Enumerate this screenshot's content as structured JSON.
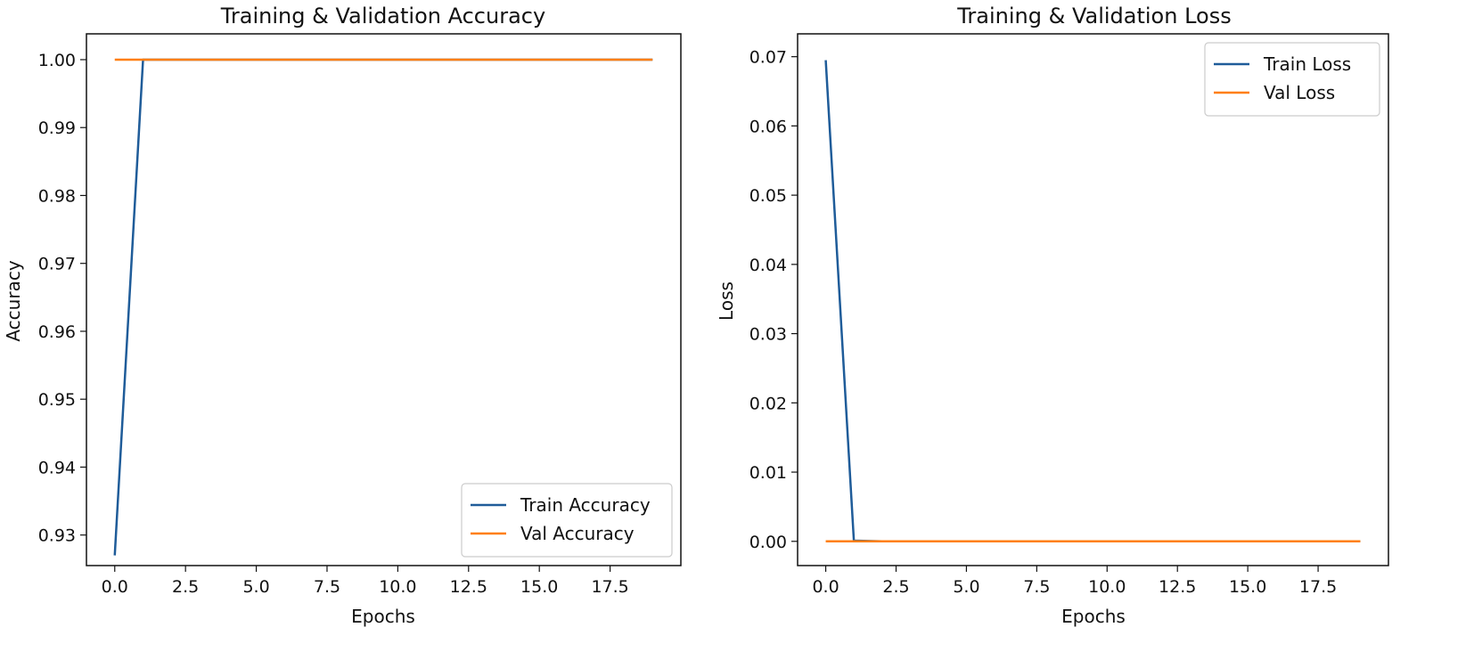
{
  "chart_data": [
    {
      "type": "line",
      "title": "Training & Validation Accuracy",
      "xlabel": "Epochs",
      "ylabel": "Accuracy",
      "xlim": [
        -1.0,
        20.0
      ],
      "ylim": [
        0.9255,
        1.0038
      ],
      "xticks": [
        0.0,
        2.5,
        5.0,
        7.5,
        10.0,
        12.5,
        15.0,
        17.5
      ],
      "xtick_labels": [
        "0.0",
        "2.5",
        "5.0",
        "7.5",
        "10.0",
        "12.5",
        "15.0",
        "17.5"
      ],
      "yticks": [
        0.93,
        0.94,
        0.95,
        0.96,
        0.97,
        0.98,
        0.99,
        1.0
      ],
      "ytick_labels": [
        "0.93",
        "0.94",
        "0.95",
        "0.96",
        "0.97",
        "0.98",
        "0.99",
        "1.00"
      ],
      "x": [
        0,
        1,
        2,
        3,
        4,
        5,
        6,
        7,
        8,
        9,
        10,
        11,
        12,
        13,
        14,
        15,
        16,
        17,
        18,
        19
      ],
      "series": [
        {
          "name": "Train Accuracy",
          "color": "#1f5c99",
          "values": [
            0.927,
            1.0,
            1.0,
            1.0,
            1.0,
            1.0,
            1.0,
            1.0,
            1.0,
            1.0,
            1.0,
            1.0,
            1.0,
            1.0,
            1.0,
            1.0,
            1.0,
            1.0,
            1.0,
            1.0
          ]
        },
        {
          "name": "Val Accuracy",
          "color": "#ff7f0e",
          "values": [
            1.0,
            1.0,
            1.0,
            1.0,
            1.0,
            1.0,
            1.0,
            1.0,
            1.0,
            1.0,
            1.0,
            1.0,
            1.0,
            1.0,
            1.0,
            1.0,
            1.0,
            1.0,
            1.0,
            1.0
          ]
        }
      ],
      "legend_position": "lower-right",
      "grid": false
    },
    {
      "type": "line",
      "title": "Training & Validation Loss",
      "xlabel": "Epochs",
      "ylabel": "Loss",
      "xlim": [
        -1.0,
        20.0
      ],
      "ylim": [
        -0.0035,
        0.0733
      ],
      "xticks": [
        0.0,
        2.5,
        5.0,
        7.5,
        10.0,
        12.5,
        15.0,
        17.5
      ],
      "xtick_labels": [
        "0.0",
        "2.5",
        "5.0",
        "7.5",
        "10.0",
        "12.5",
        "15.0",
        "17.5"
      ],
      "yticks": [
        0.0,
        0.01,
        0.02,
        0.03,
        0.04,
        0.05,
        0.06,
        0.07
      ],
      "ytick_labels": [
        "0.00",
        "0.01",
        "0.02",
        "0.03",
        "0.04",
        "0.05",
        "0.06",
        "0.07"
      ],
      "x": [
        0,
        1,
        2,
        3,
        4,
        5,
        6,
        7,
        8,
        9,
        10,
        11,
        12,
        13,
        14,
        15,
        16,
        17,
        18,
        19
      ],
      "series": [
        {
          "name": "Train Loss",
          "color": "#1f5c99",
          "values": [
            0.0695,
            0.0001,
            0.0,
            0.0,
            0.0,
            0.0,
            0.0,
            0.0,
            0.0,
            0.0,
            0.0,
            0.0,
            0.0,
            0.0,
            0.0,
            0.0,
            0.0,
            0.0,
            0.0,
            0.0
          ]
        },
        {
          "name": "Val Loss",
          "color": "#ff7f0e",
          "values": [
            0.0,
            0.0,
            0.0,
            0.0,
            0.0,
            0.0,
            0.0,
            0.0,
            0.0,
            0.0,
            0.0,
            0.0,
            0.0,
            0.0,
            0.0,
            0.0,
            0.0,
            0.0,
            0.0,
            0.0
          ]
        }
      ],
      "legend_position": "upper-right",
      "grid": false
    }
  ]
}
